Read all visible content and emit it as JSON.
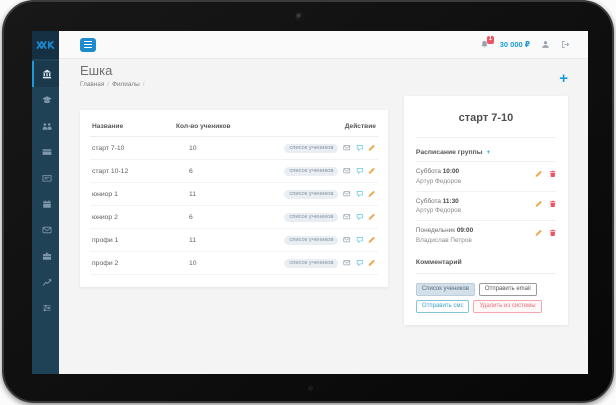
{
  "colors": {
    "accent": "#1a9bd7",
    "sidebar": "#204257",
    "danger": "#ed5565",
    "warning": "#f0a64e",
    "teal": "#1bb7c9"
  },
  "topbar": {
    "notification_count": "1",
    "balance": "30 000 ₽"
  },
  "sidebar": {
    "items": [
      {
        "icon": "bank",
        "active": true
      },
      {
        "icon": "graduation-cap",
        "active": false
      },
      {
        "icon": "users",
        "active": false
      },
      {
        "icon": "credit-card",
        "active": false
      },
      {
        "icon": "wallet",
        "active": false
      },
      {
        "icon": "calendar",
        "active": false
      },
      {
        "icon": "envelope",
        "active": false
      },
      {
        "icon": "briefcase",
        "active": false
      },
      {
        "icon": "chart-line",
        "active": false
      },
      {
        "icon": "sliders",
        "active": false
      }
    ]
  },
  "page": {
    "title": "Ешка",
    "breadcrumb": [
      "Главная",
      "Филиалы"
    ],
    "add_label": "+"
  },
  "table": {
    "headers": [
      "Название",
      "Кол-во учеников",
      "Действие"
    ],
    "badge_label": "список учеников",
    "rows": [
      {
        "name": "старт 7-10",
        "count": "10"
      },
      {
        "name": "старт 10-12",
        "count": "6"
      },
      {
        "name": "юниор 1",
        "count": "11"
      },
      {
        "name": "юниор 2",
        "count": "6"
      },
      {
        "name": "профи 1",
        "count": "11"
      },
      {
        "name": "профи 2",
        "count": "10"
      }
    ]
  },
  "detail": {
    "title": "старт 7-10",
    "schedule_label": "Расписание группы",
    "add_symbol": "+",
    "schedule": [
      {
        "day": "Суббота",
        "time": "10:00",
        "teacher": "Артур Федоров"
      },
      {
        "day": "Суббота",
        "time": "11:30",
        "teacher": "Артур Федоров"
      },
      {
        "day": "Понедельник",
        "time": "09:00",
        "teacher": "Владислав Петров"
      }
    ],
    "comment_label": "Комментарий",
    "buttons": {
      "students": "Список учеников",
      "email": "Отправить email",
      "sms": "Отправить смс",
      "delete": "Удалить из системы"
    }
  }
}
